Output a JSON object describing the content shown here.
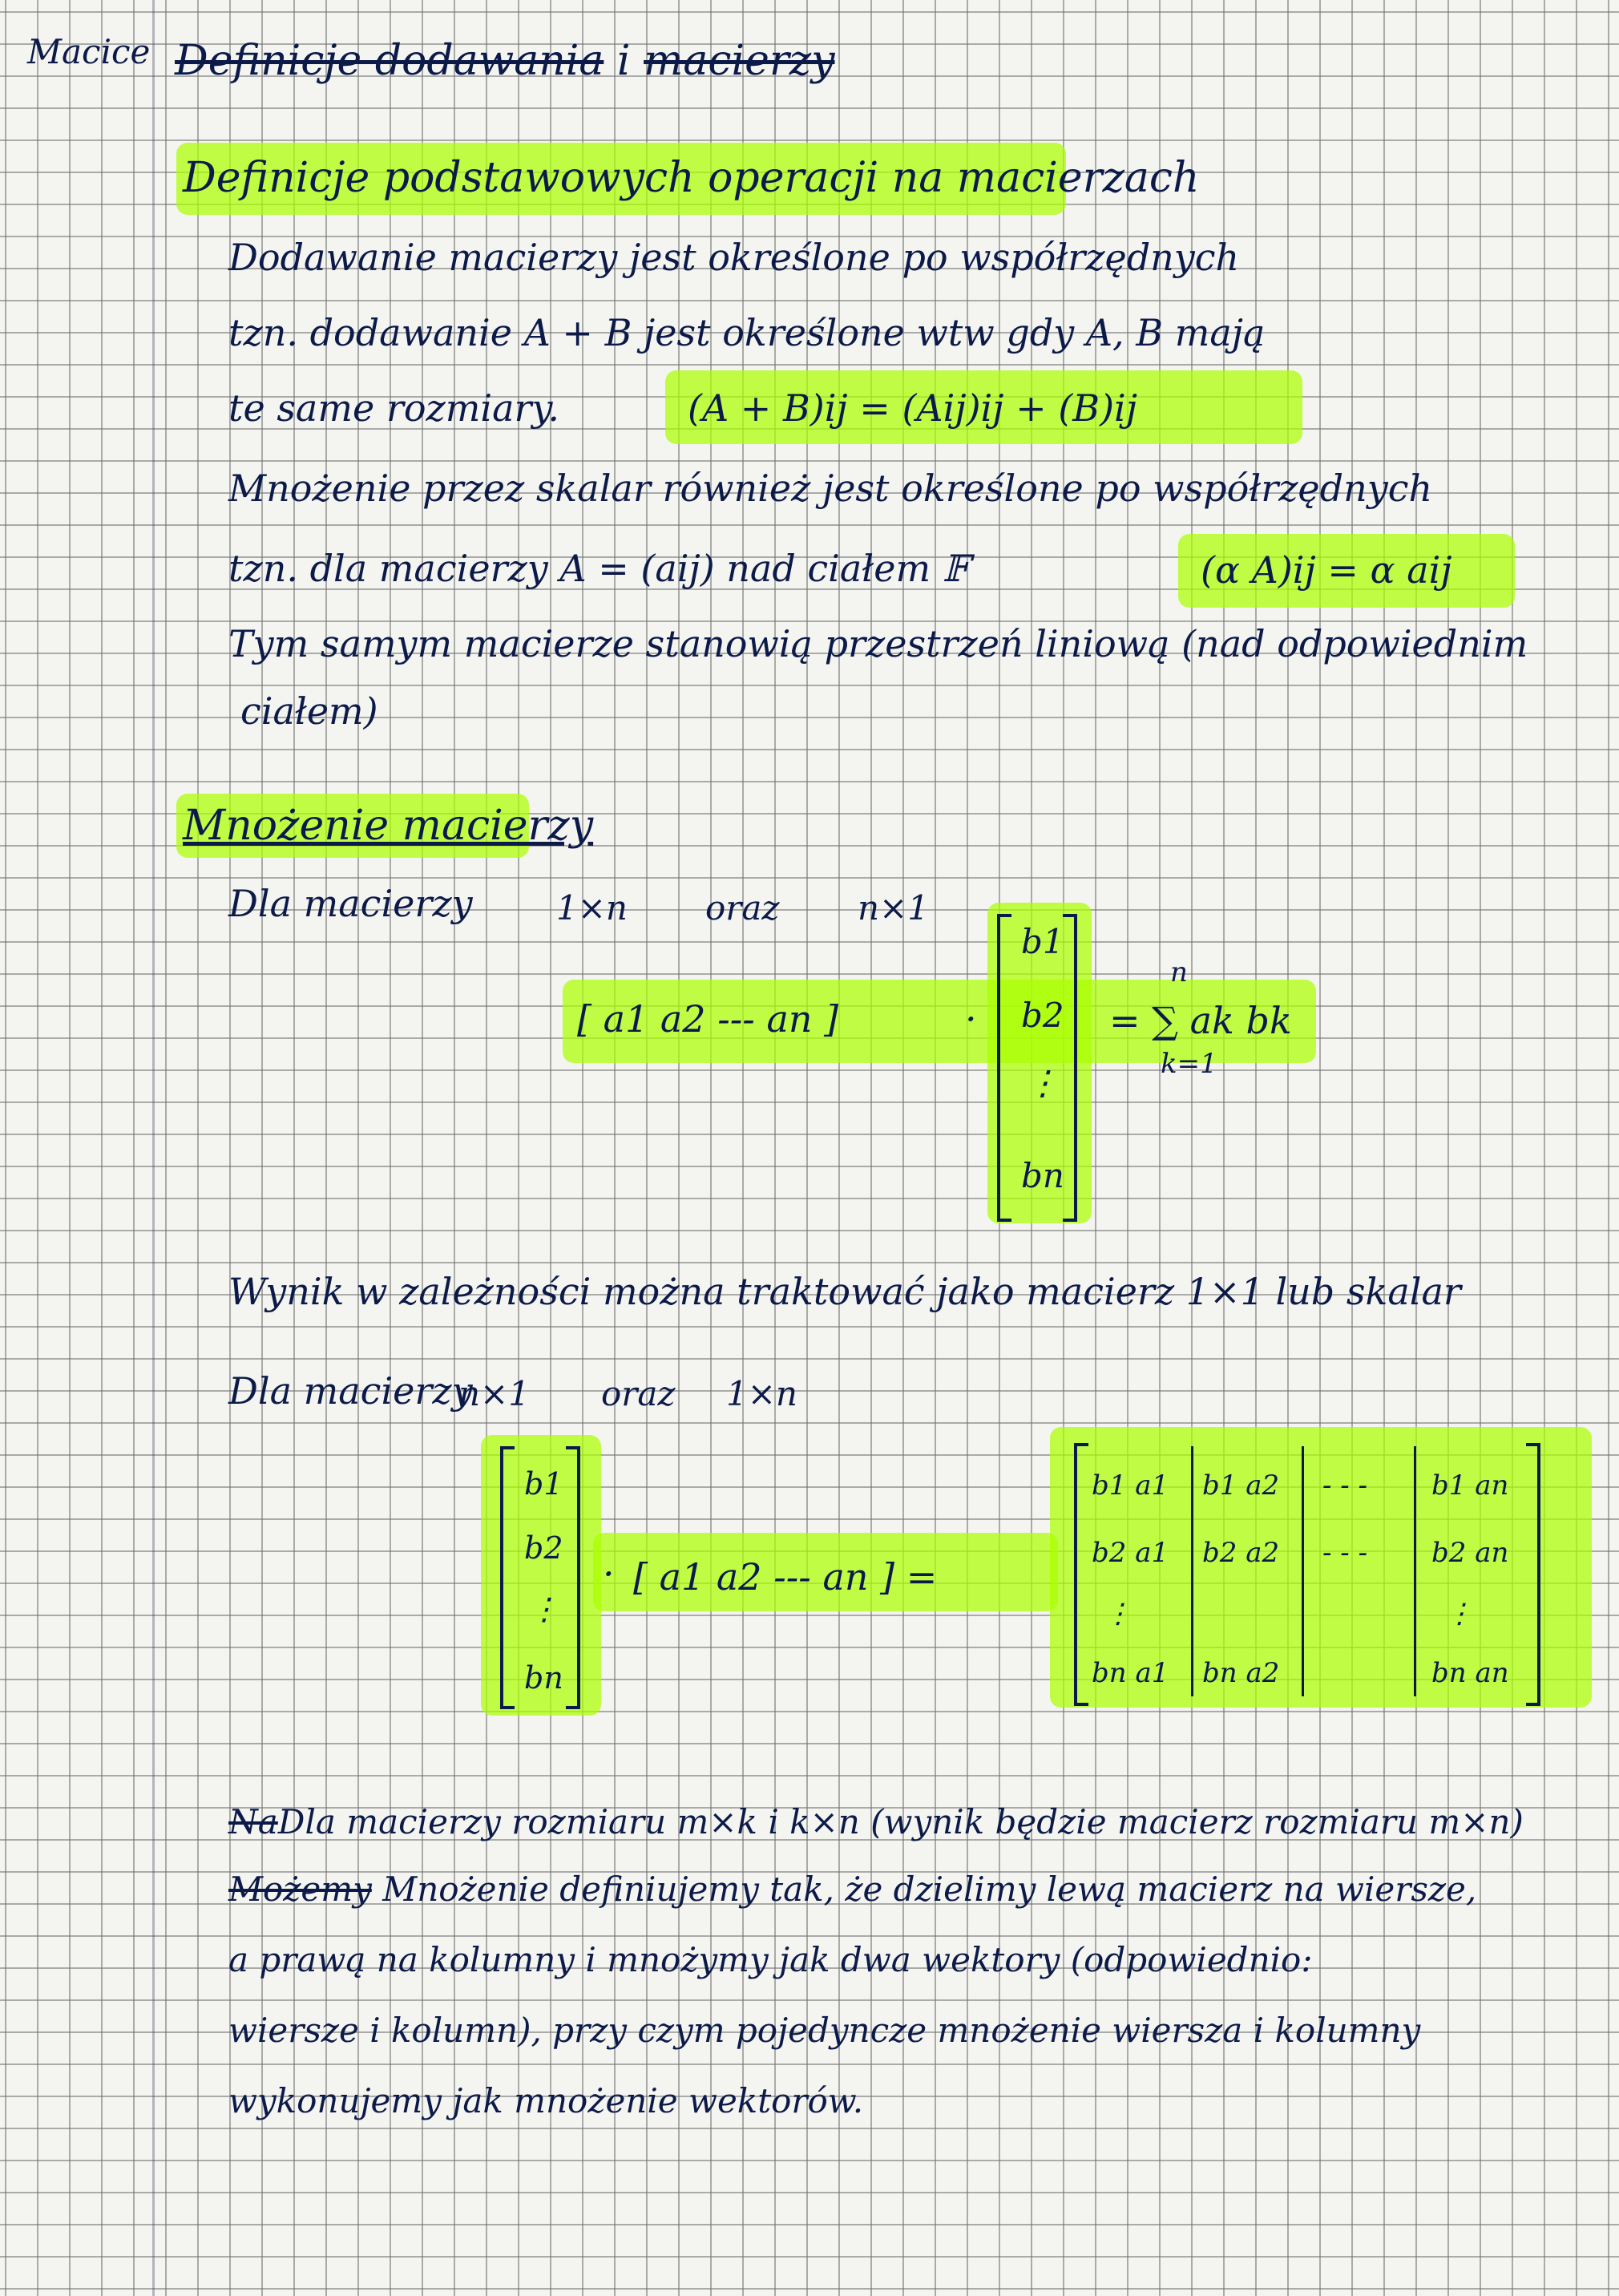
{
  "page": {
    "margin_label": "Macice",
    "title_struck": "Definicje dodawania",
    "title_joiner": "i",
    "title_end": "macierzy"
  },
  "section1": {
    "heading": "Definicje podstawowych operacji na macierzach",
    "line1": "Dodawanie macierzy jest określone po współrzędnych",
    "line2": "tzn. dodawanie  A + B  jest określone wtw gdy A, B mają",
    "line3": "te same rozmiary.",
    "formula_add": "(A + B)ij = (Aij)ij + (B)ij",
    "line4": "Mnożenie przez skalar również jest określone po współrzędnych",
    "line5": "tzn. dla macierzy  A = (aij)  nad ciałem  𝔽",
    "formula_scalar": "(α A)ij = α aij",
    "line6": "Tym samym macierze stanowią przestrzeń liniową (nad odpowiednim",
    "line7": "ciałem)"
  },
  "section2": {
    "heading": "Mnożenie macierzy",
    "line1_lead": "Dla macierzy",
    "line1_dim1": "1×n",
    "line1_conj": "oraz",
    "line1_dim2": "n×1",
    "row_vector": "[ a1   a2  ---  an ]",
    "dot": "·",
    "col_vector": [
      "b1",
      "b2",
      "⋮",
      "bn"
    ],
    "sum_result": "= ∑ ak bk",
    "sum_top": "n",
    "sum_bottom": "k=1",
    "result_note": "Wynik w zależności można traktować jako macierz 1×1 lub skalar",
    "line2_lead": "Dla macierzy",
    "line2_dim1": "n×1",
    "line2_conj": "oraz",
    "line2_dim2": "1×n",
    "col_vector2": [
      "b1",
      "b2",
      "⋮",
      "bn"
    ],
    "row_vector2": "[ a1   a2  ---  an ] =",
    "outer_matrix": [
      [
        "b1 a1",
        "b1 a2",
        "- - -",
        "b1 an"
      ],
      [
        "b2 a1",
        "b2 a2",
        "- - -",
        "b2 an"
      ],
      [
        "⋮",
        "",
        "",
        "⋮"
      ],
      [
        "bn a1",
        "bn a2",
        "",
        "bn an"
      ]
    ],
    "para1_struck": "Na",
    "para1": "Dla macierzy rozmiaru  m×k  i  k×n   (wynik będzie macierz rozmiaru m×n)",
    "para2_struck": "Możemy",
    "para2": "Mnożenie definiujemy tak, że dzielimy lewą macierz na wiersze,",
    "para3": "a prawą na kolumny i mnożymy jak dwa wektory (odpowiednio:",
    "para4": "wiersze i kolumn), przy czym pojedyncze  mnożenie  wiersza  i  kolumny",
    "para5": "wykonujemy jak mnożenie wektorów."
  }
}
